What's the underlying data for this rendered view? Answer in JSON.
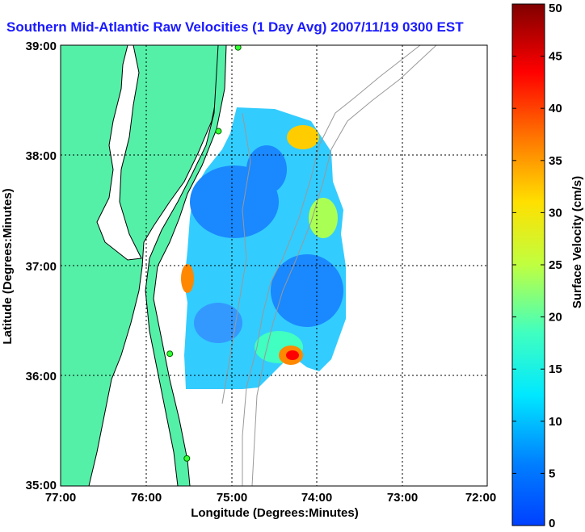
{
  "title": "Southern Mid-Atlantic Raw Velocities (1 Day Avg) 2007/11/19 0300 EST",
  "map": {
    "x_axis_label": "Longitude (Degrees:Minutes)",
    "y_axis_label": "Latitude (Degrees:Minutes)",
    "x_ticks": [
      "77:00",
      "76:00",
      "75:00",
      "74:00",
      "73:00",
      "72:00"
    ],
    "y_ticks": [
      "39:00",
      "38:00",
      "37:00",
      "36:00",
      "35:00"
    ],
    "lon_range": [
      -77,
      -72
    ],
    "lat_range": [
      35,
      39
    ]
  },
  "colorbar": {
    "label": "Surface Velocity (cm/s)",
    "ticks": [
      "50",
      "45",
      "40",
      "35",
      "30",
      "25",
      "20",
      "15",
      "10",
      "5",
      "0"
    ],
    "range": [
      0,
      50
    ]
  },
  "stations": [
    {
      "lon": -74.92,
      "lat": 38.98
    },
    {
      "lon": -75.15,
      "lat": 38.22
    },
    {
      "lon": -75.72,
      "lat": 36.2
    },
    {
      "lon": -75.52,
      "lat": 35.25
    }
  ],
  "colors": {
    "land": "#55f0a8",
    "coast": "#000000",
    "bathy": "#999999",
    "title": "#1a1aff"
  }
}
